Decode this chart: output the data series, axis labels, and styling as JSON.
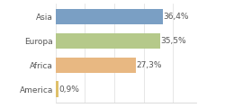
{
  "categories": [
    "America",
    "Africa",
    "Europa",
    "Asia"
  ],
  "values": [
    0.9,
    27.3,
    35.5,
    36.4
  ],
  "labels": [
    "0,9%",
    "27,3%",
    "35,5%",
    "36,4%"
  ],
  "bar_colors": [
    "#dfc06a",
    "#e8b882",
    "#b5c98a",
    "#7a9fc4"
  ],
  "xlim": [
    0,
    48
  ],
  "background_color": "#ffffff",
  "label_fontsize": 6.5,
  "tick_fontsize": 6.5,
  "bar_height": 0.65
}
